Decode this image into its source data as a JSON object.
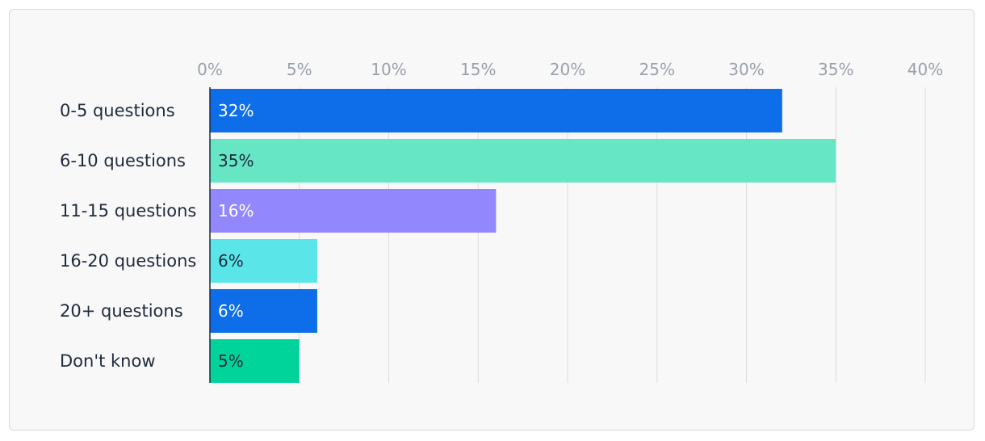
{
  "chart_data": {
    "type": "bar",
    "orientation": "horizontal",
    "title": "",
    "xlabel": "",
    "ylabel": "",
    "xlim": [
      0,
      40
    ],
    "ticks": [
      "0%",
      "5%",
      "10%",
      "15%",
      "20%",
      "25%",
      "30%",
      "35%",
      "40%"
    ],
    "tick_values": [
      0,
      5,
      10,
      15,
      20,
      25,
      30,
      35,
      40
    ],
    "categories": [
      "0-5 questions",
      "6-10 questions",
      "11-15 questions",
      "16-20 questions",
      "20+ questions",
      "Don't know"
    ],
    "values": [
      32,
      35,
      16,
      6,
      6,
      5
    ],
    "value_labels": [
      "32%",
      "35%",
      "16%",
      "6%",
      "6%",
      "5%"
    ],
    "bar_colors": [
      "#0e6de8",
      "#66e6c5",
      "#9287fc",
      "#5ae6e8",
      "#0e6de8",
      "#00d49b"
    ],
    "label_colors": [
      "#ffffff",
      "#1f2a3c",
      "#ffffff",
      "#1f2a3c",
      "#ffffff",
      "#1f2a3c"
    ],
    "grid": true,
    "legend": "none",
    "colors": {
      "grid": "#dcdcdc",
      "axis": "#1f2a3c"
    }
  }
}
